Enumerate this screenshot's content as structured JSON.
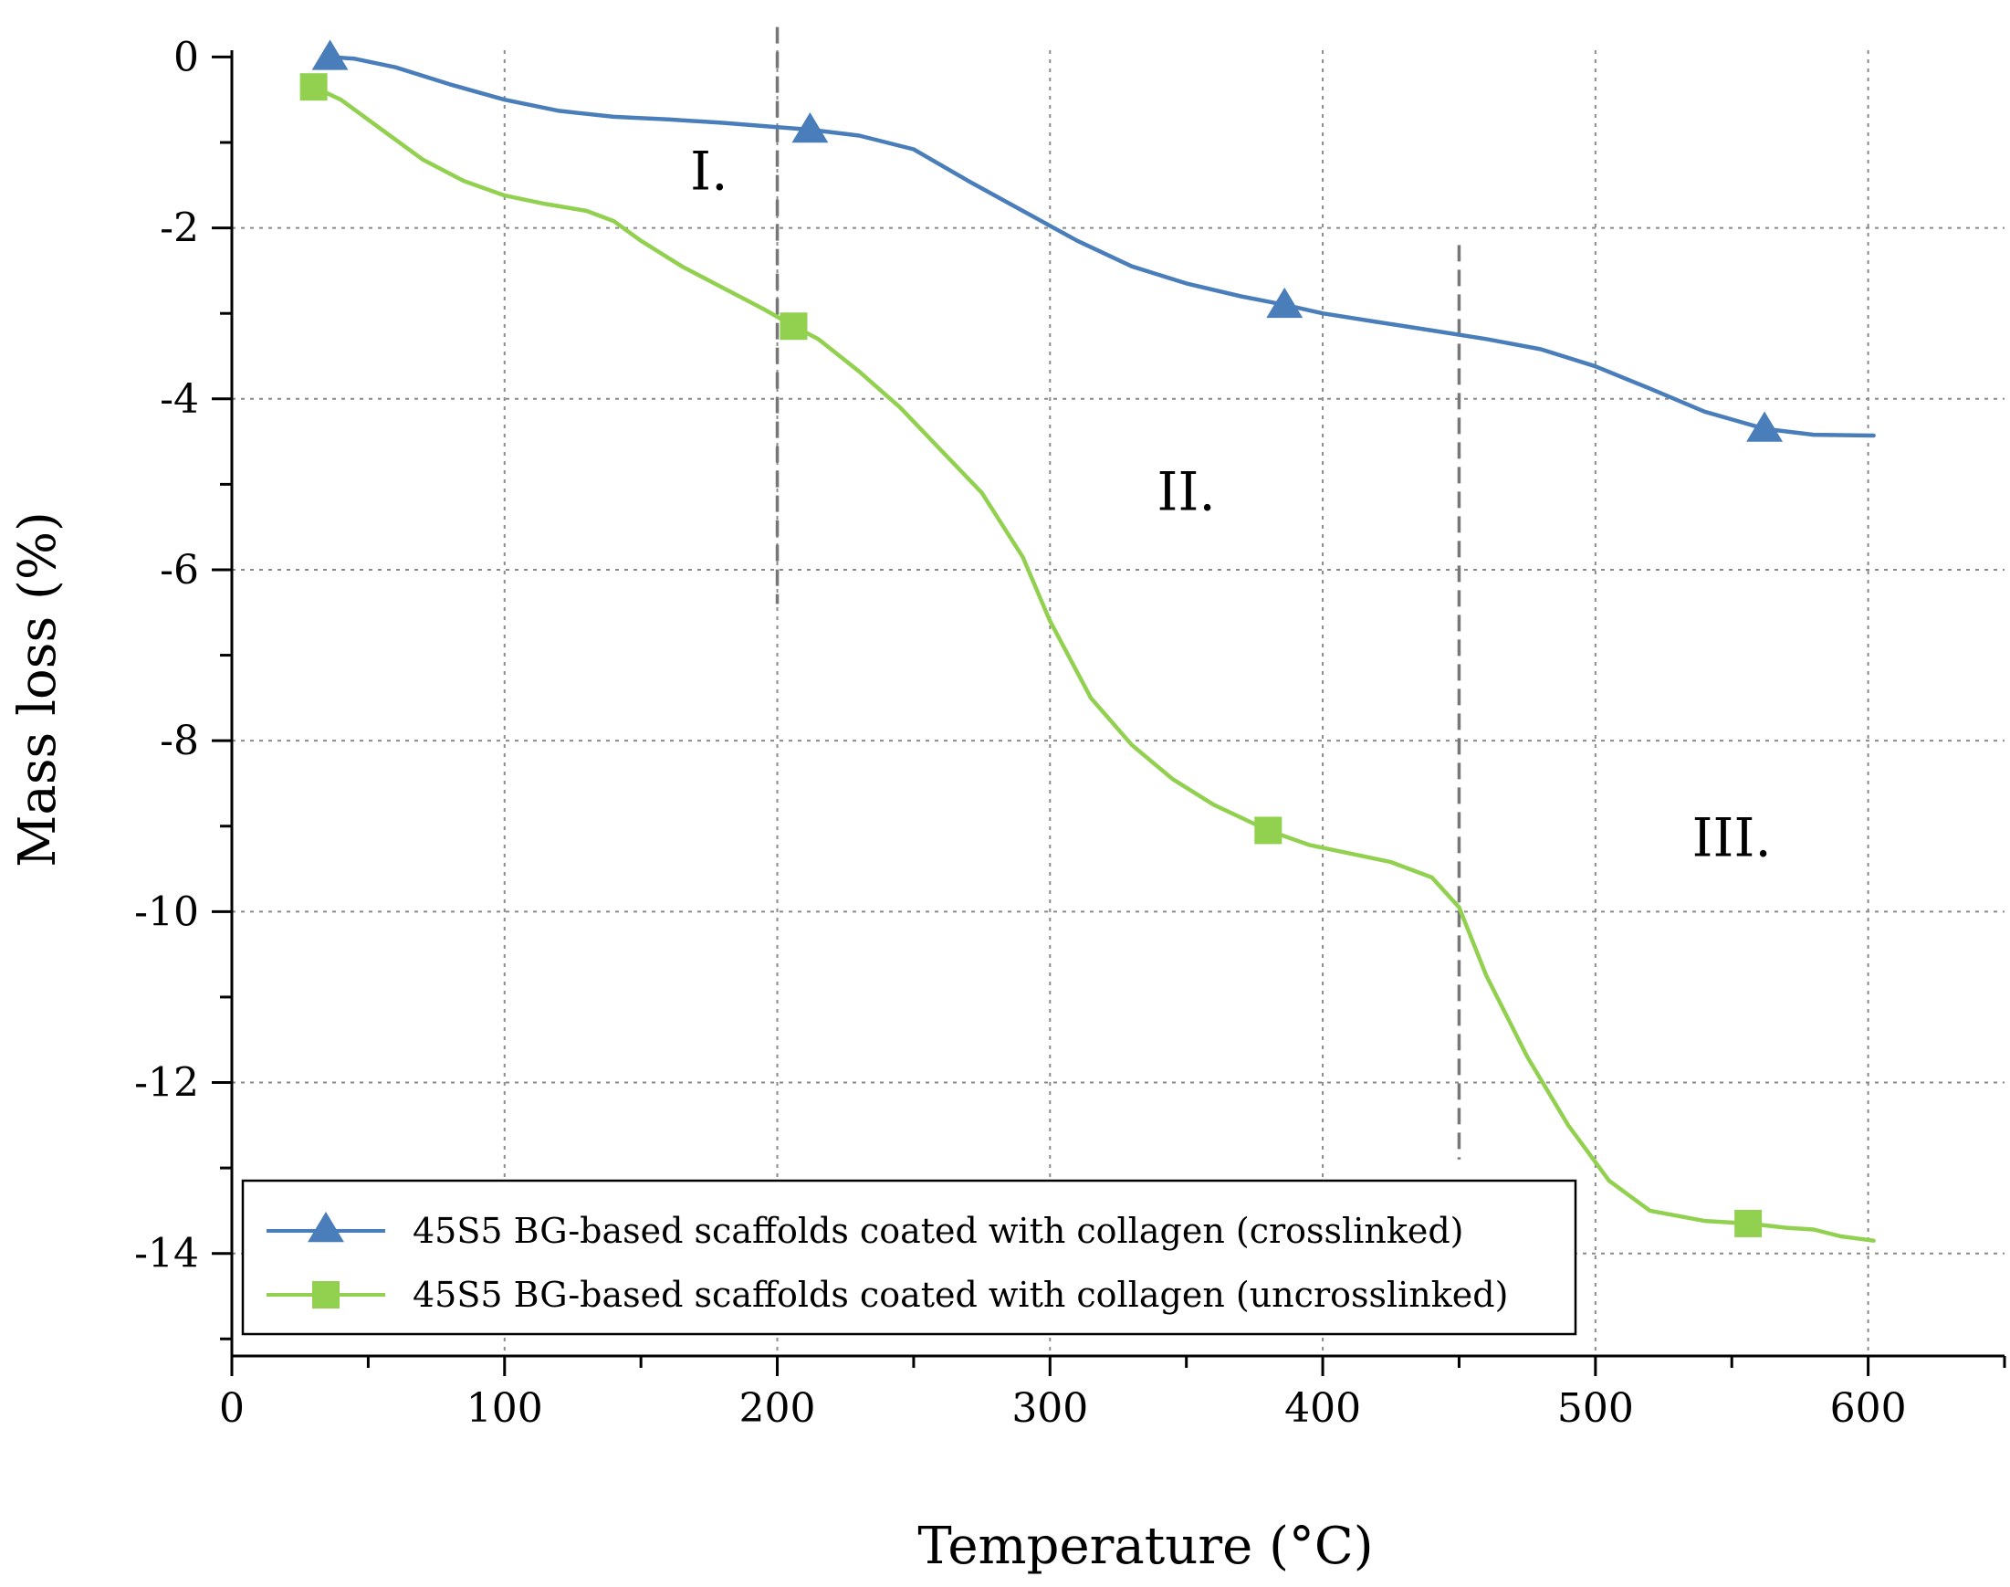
{
  "chart_data": {
    "type": "line",
    "title": "",
    "xlabel": "Temperature (°C)",
    "ylabel": "Mass loss (%)",
    "xlim": [
      0,
      650
    ],
    "ylim": [
      -15.2,
      0.4
    ],
    "x_ticks": [
      0,
      100,
      200,
      300,
      400,
      500,
      600
    ],
    "x_tick_labels": [
      "0",
      "100",
      "200",
      "300",
      "400",
      "500",
      "600"
    ],
    "y_ticks": [
      0,
      -2,
      -4,
      -6,
      -8,
      -10,
      -12,
      -14
    ],
    "y_tick_labels": [
      "0",
      "-2",
      "-4",
      "-6",
      "-8",
      "-10",
      "-12",
      "-14"
    ],
    "grid": true,
    "legend_position": "bottom-left",
    "region_dividers": [
      {
        "x": 200,
        "y_top": 0.35,
        "y_bottom": -6.4
      },
      {
        "x": 450,
        "y_top": -2.2,
        "y_bottom": -12.9
      }
    ],
    "annotations": [
      {
        "text": "I.",
        "x": 175,
        "y": -1.55
      },
      {
        "text": "II.",
        "x": 350,
        "y": -5.3
      },
      {
        "text": "III.",
        "x": 550,
        "y": -9.35
      }
    ],
    "series": [
      {
        "name": "45S5 BG-based scaffolds coated with collagen (crosslinked)",
        "color": "#4a7ebb",
        "marker": "triangle",
        "markers": [
          [
            36,
            0.0
          ],
          [
            212,
            -0.85
          ],
          [
            386,
            -2.9
          ],
          [
            562,
            -4.35
          ]
        ],
        "points": [
          [
            36,
            0.0
          ],
          [
            45,
            -0.02
          ],
          [
            60,
            -0.12
          ],
          [
            80,
            -0.32
          ],
          [
            100,
            -0.5
          ],
          [
            120,
            -0.63
          ],
          [
            140,
            -0.7
          ],
          [
            160,
            -0.73
          ],
          [
            180,
            -0.77
          ],
          [
            200,
            -0.82
          ],
          [
            212,
            -0.85
          ],
          [
            230,
            -0.92
          ],
          [
            250,
            -1.08
          ],
          [
            270,
            -1.45
          ],
          [
            290,
            -1.8
          ],
          [
            310,
            -2.15
          ],
          [
            330,
            -2.45
          ],
          [
            350,
            -2.65
          ],
          [
            370,
            -2.8
          ],
          [
            386,
            -2.9
          ],
          [
            400,
            -3.0
          ],
          [
            420,
            -3.1
          ],
          [
            440,
            -3.2
          ],
          [
            460,
            -3.3
          ],
          [
            480,
            -3.42
          ],
          [
            500,
            -3.62
          ],
          [
            520,
            -3.88
          ],
          [
            540,
            -4.15
          ],
          [
            562,
            -4.35
          ],
          [
            580,
            -4.42
          ],
          [
            602,
            -4.43
          ]
        ]
      },
      {
        "name": "45S5 BG-based scaffolds coated with collagen (uncrosslinked)",
        "color": "#92d050",
        "marker": "square",
        "markers": [
          [
            30,
            -0.35
          ],
          [
            206,
            -3.15
          ],
          [
            380,
            -9.05
          ],
          [
            556,
            -13.65
          ]
        ],
        "points": [
          [
            30,
            -0.35
          ],
          [
            40,
            -0.5
          ],
          [
            55,
            -0.85
          ],
          [
            70,
            -1.2
          ],
          [
            85,
            -1.45
          ],
          [
            100,
            -1.62
          ],
          [
            115,
            -1.72
          ],
          [
            130,
            -1.8
          ],
          [
            140,
            -1.92
          ],
          [
            150,
            -2.15
          ],
          [
            165,
            -2.45
          ],
          [
            180,
            -2.7
          ],
          [
            195,
            -2.95
          ],
          [
            206,
            -3.15
          ],
          [
            215,
            -3.3
          ],
          [
            230,
            -3.68
          ],
          [
            245,
            -4.1
          ],
          [
            260,
            -4.6
          ],
          [
            275,
            -5.1
          ],
          [
            290,
            -5.85
          ],
          [
            300,
            -6.6
          ],
          [
            315,
            -7.5
          ],
          [
            330,
            -8.05
          ],
          [
            345,
            -8.45
          ],
          [
            360,
            -8.75
          ],
          [
            380,
            -9.05
          ],
          [
            395,
            -9.22
          ],
          [
            410,
            -9.32
          ],
          [
            425,
            -9.42
          ],
          [
            440,
            -9.6
          ],
          [
            450,
            -9.95
          ],
          [
            460,
            -10.75
          ],
          [
            475,
            -11.7
          ],
          [
            490,
            -12.5
          ],
          [
            505,
            -13.15
          ],
          [
            520,
            -13.5
          ],
          [
            540,
            -13.62
          ],
          [
            556,
            -13.65
          ],
          [
            570,
            -13.7
          ],
          [
            580,
            -13.72
          ],
          [
            590,
            -13.8
          ],
          [
            602,
            -13.85
          ]
        ]
      }
    ]
  }
}
